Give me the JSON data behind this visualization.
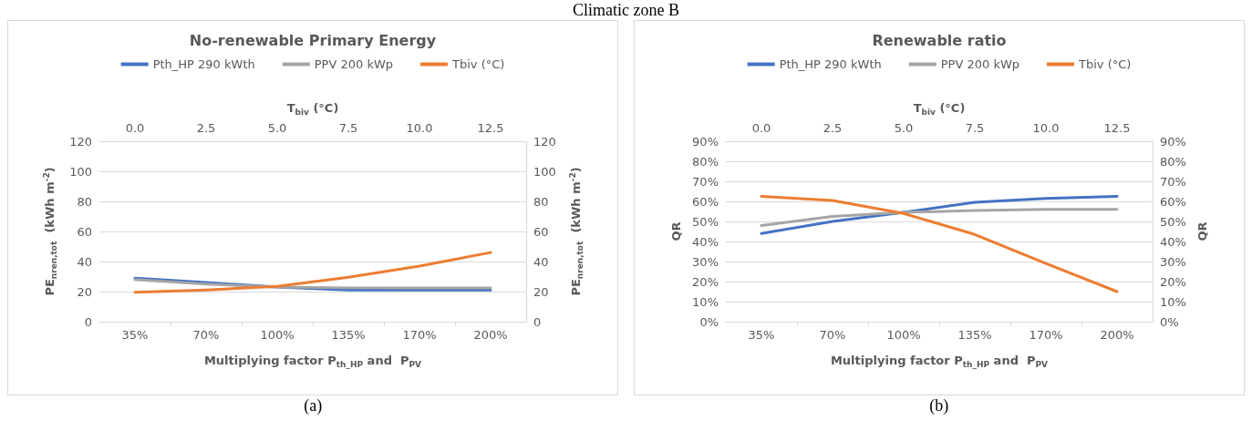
{
  "chart_data": [
    {
      "type": "line",
      "title": "No-renewable Primary Energy",
      "xlabel": "Multiplying factor P$_{th_HP}$ and  P$_{PV}$",
      "ylabel": "PE$_{nren,tot}$  (kWh m$^{-2}$)",
      "y2label": "PE$_{nren,tot}$  (kWh m$^{-2}$)",
      "x2label": "T$_{biv}$ (°C)",
      "annotations": [
        "Climatic zone B",
        "(a)"
      ],
      "categories": [
        "35%",
        "70%",
        "100%",
        "135%",
        "170%",
        "200%"
      ],
      "series": [
        {
          "name": "Pth_HP 290 kWth",
          "color": "#4472c4",
          "values": [
            29,
            26,
            23,
            21,
            21,
            21
          ]
        },
        {
          "name": "PPV 200 kWp",
          "color": "#a5a5a5",
          "values": [
            28,
            25,
            23,
            22.5,
            22.5,
            22.5
          ]
        },
        {
          "name": "Tbiv (°C)",
          "color": "#ed7d31",
          "axis": "x2",
          "x": [
            0,
            2.5,
            5,
            7.5,
            10,
            12.5
          ],
          "values": [
            19.5,
            21,
            23.5,
            29.5,
            37,
            46
          ]
        }
      ],
      "ylim": [
        0,
        120
      ],
      "yticks": [
        0,
        20,
        40,
        60,
        80,
        100,
        120
      ],
      "y2lim": [
        0,
        120
      ],
      "y2ticks": [
        0,
        20,
        40,
        60,
        80,
        100,
        120
      ],
      "x2lim": [
        -1.25,
        13.75
      ],
      "x2ticks": [
        {
          "value": 0,
          "label": "0.0"
        },
        {
          "value": 2.5,
          "label": "2.5"
        },
        {
          "value": 5,
          "label": "5.0"
        },
        {
          "value": 7.5,
          "label": "7.5"
        },
        {
          "value": 10,
          "label": "10.0"
        },
        {
          "value": 12.5,
          "label": "12.5"
        }
      ],
      "grid": "y",
      "legend": "top",
      "marker": "none",
      "line_style": "solid"
    },
    {
      "type": "line",
      "title": "Renewable ratio",
      "xlabel": "Multiplying factor P$_{th_HP}$ and  P$_{PV}$",
      "ylabel": "QR",
      "y2label": "QR",
      "x2label": "T$_{biv}$ (°C)",
      "annotations": [
        "(b)"
      ],
      "categories": [
        "35%",
        "70%",
        "100%",
        "135%",
        "170%",
        "200%"
      ],
      "series": [
        {
          "name": "Pth_HP 290 kWth",
          "color": "#4472c4",
          "values": [
            44,
            50,
            54.5,
            59.5,
            61.5,
            62.5
          ]
        },
        {
          "name": "PPV 200 kWp",
          "color": "#a5a5a5",
          "values": [
            48,
            52.5,
            54.5,
            55.5,
            56,
            56
          ]
        },
        {
          "name": "Tbiv (°C)",
          "color": "#ed7d31",
          "axis": "x2",
          "x": [
            0,
            2.5,
            5,
            7.5,
            10,
            12.5
          ],
          "values": [
            62.5,
            60.5,
            54,
            43.5,
            29,
            15
          ]
        }
      ],
      "ylim": [
        0,
        90
      ],
      "yticks": [
        {
          "value": 0,
          "label": "0%"
        },
        {
          "value": 10,
          "label": "10%"
        },
        {
          "value": 20,
          "label": "20%"
        },
        {
          "value": 30,
          "label": "30%"
        },
        {
          "value": 40,
          "label": "40%"
        },
        {
          "value": 50,
          "label": "50%"
        },
        {
          "value": 60,
          "label": "60%"
        },
        {
          "value": 70,
          "label": "70%"
        },
        {
          "value": 80,
          "label": "80%"
        },
        {
          "value": 90,
          "label": "90%"
        }
      ],
      "y2lim": [
        0,
        90
      ],
      "y2ticks": [
        {
          "value": 0,
          "label": "0%"
        },
        {
          "value": 10,
          "label": "10%"
        },
        {
          "value": 20,
          "label": "20%"
        },
        {
          "value": 30,
          "label": "30%"
        },
        {
          "value": 40,
          "label": "40%"
        },
        {
          "value": 50,
          "label": "50%"
        },
        {
          "value": 60,
          "label": "60%"
        },
        {
          "value": 70,
          "label": "70%"
        },
        {
          "value": 80,
          "label": "80%"
        },
        {
          "value": 90,
          "label": "90%"
        }
      ],
      "x2lim": [
        -1.25,
        13.75
      ],
      "x2ticks": [
        {
          "value": 0,
          "label": "0.0"
        },
        {
          "value": 2.5,
          "label": "2.5"
        },
        {
          "value": 5,
          "label": "5.0"
        },
        {
          "value": 7.5,
          "label": "7.5"
        },
        {
          "value": 10,
          "label": "10.0"
        },
        {
          "value": 12.5,
          "label": "12.5"
        }
      ],
      "grid": "y",
      "legend": "top",
      "marker": "none",
      "line_style": "solid"
    }
  ]
}
